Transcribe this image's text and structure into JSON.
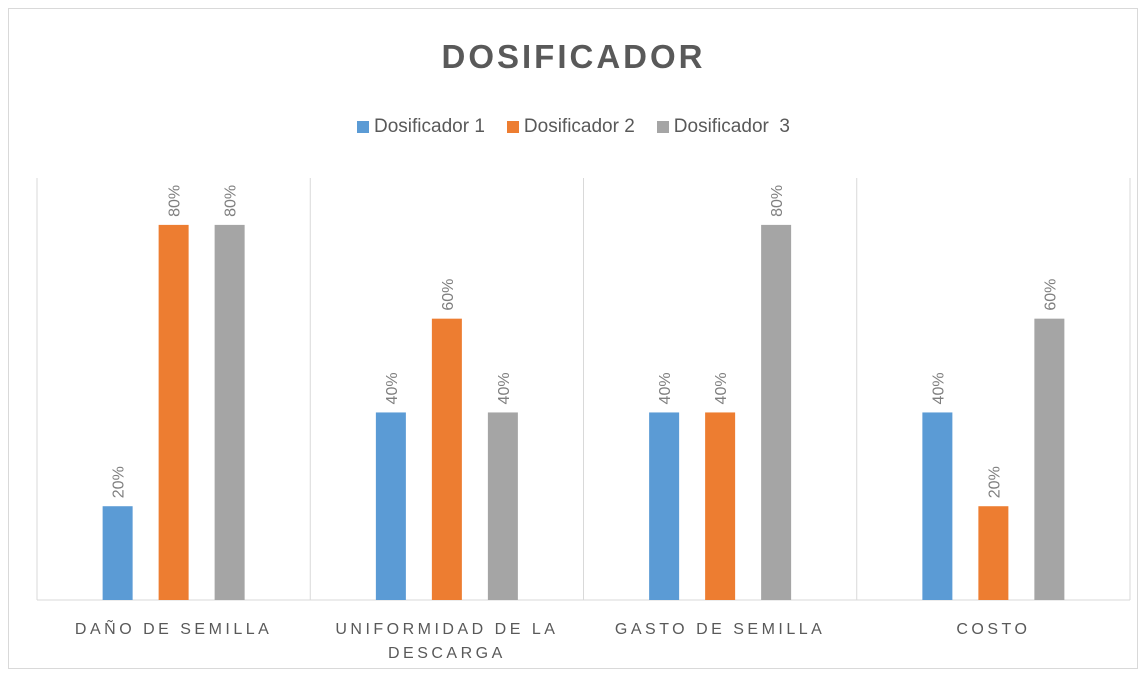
{
  "chart_data": {
    "type": "bar",
    "title": "DOSIFICADOR",
    "categories": [
      "DAÑO DE SEMILLA",
      "UNIFORMIDAD DE LA DESCARGA",
      "GASTO DE SEMILLA",
      "COSTO"
    ],
    "series": [
      {
        "name": "Dosificador 1",
        "color": "#5b9bd5",
        "values": [
          20,
          40,
          40,
          40
        ],
        "value_labels": [
          "20%",
          "40%",
          "40%",
          "40%"
        ]
      },
      {
        "name": "Dosificador 2",
        "color": "#ed7d31",
        "values": [
          80,
          60,
          40,
          20
        ],
        "value_labels": [
          "80%",
          "60%",
          "40%",
          "20%"
        ]
      },
      {
        "name": "Dosificador  3",
        "color": "#a5a5a5",
        "values": [
          80,
          40,
          80,
          60
        ],
        "value_labels": [
          "80%",
          "40%",
          "80%",
          "60%"
        ]
      }
    ],
    "ylim": [
      0,
      90
    ],
    "legend": "top"
  }
}
